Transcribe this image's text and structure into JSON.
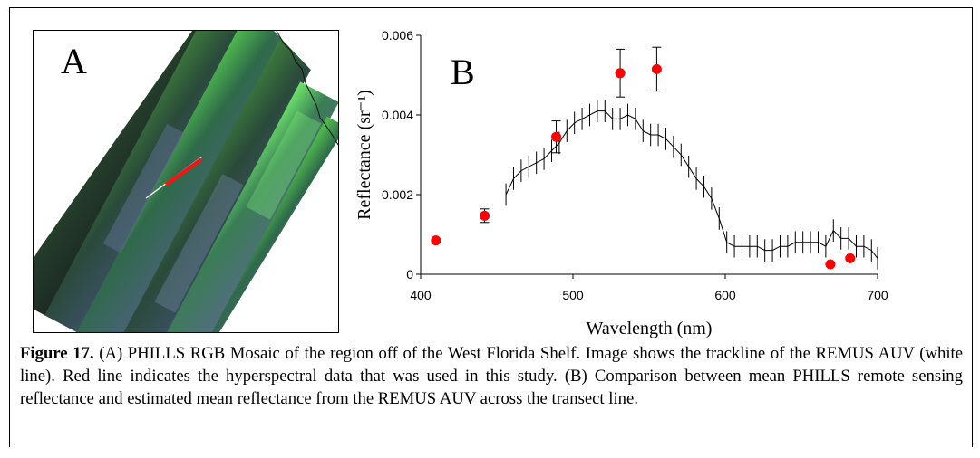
{
  "panel_a": {
    "label": "A"
  },
  "chart_data": {
    "type": "scatter",
    "panel_label": "B",
    "xlabel": "Wavelength (nm)",
    "ylabel": "Reflectance (sr⁻¹)",
    "xlim": [
      400,
      700
    ],
    "ylim": [
      0,
      0.006
    ],
    "xticks": [
      "400",
      "500",
      "600",
      "700"
    ],
    "yticks": [
      "0",
      "0.002",
      "0.004",
      "0.006"
    ],
    "grid": false,
    "legend": "none",
    "series": [
      {
        "kind": "line-with-errorbars",
        "color": "#000000",
        "x": [
          456,
          461,
          466,
          471,
          476,
          481,
          486,
          491,
          496,
          501,
          506,
          511,
          516,
          521,
          526,
          531,
          536,
          541,
          546,
          551,
          556,
          561,
          566,
          571,
          576,
          581,
          586,
          591,
          596,
          601,
          606,
          611,
          616,
          621,
          626,
          631,
          636,
          641,
          646,
          651,
          656,
          661,
          666,
          671,
          676,
          681,
          686,
          691,
          696,
          700
        ],
        "y": [
          0.002,
          0.0024,
          0.0026,
          0.0027,
          0.0028,
          0.0029,
          0.0031,
          0.0033,
          0.0036,
          0.0038,
          0.0039,
          0.004,
          0.0041,
          0.0041,
          0.0039,
          0.0039,
          0.004,
          0.0039,
          0.0036,
          0.0035,
          0.0035,
          0.0034,
          0.0032,
          0.003,
          0.0027,
          0.0024,
          0.0022,
          0.0019,
          0.0014,
          0.0008,
          0.0007,
          0.0007,
          0.0007,
          0.0007,
          0.0006,
          0.0006,
          0.0007,
          0.0007,
          0.0008,
          0.0008,
          0.0008,
          0.0008,
          0.0007,
          0.0011,
          0.0009,
          0.0009,
          0.0007,
          0.0007,
          0.0006,
          0.0004
        ],
        "err": 0.00028
      },
      {
        "kind": "points-with-errorbars",
        "color": "#ff0000",
        "x": [
          410,
          442,
          489,
          531,
          555,
          669,
          682
        ],
        "y": [
          0.00085,
          0.00147,
          0.00345,
          0.00505,
          0.00515,
          0.00025,
          0.0004
        ],
        "err": [
          0,
          0.00017,
          0.0004,
          0.0006,
          0.00055,
          0,
          0
        ]
      }
    ]
  },
  "caption": {
    "label": "Figure 17.",
    "text": " (A) PHILLS RGB Mosaic of the region off of the West Florida Shelf.  Image shows the trackline of the REMUS AUV (white line).  Red line indicates the hyperspectral data that was used in this study. (B) Comparison between mean PHILLS remote sensing reflectance and estimated mean reflectance from the REMUS AUV across the transect line."
  }
}
